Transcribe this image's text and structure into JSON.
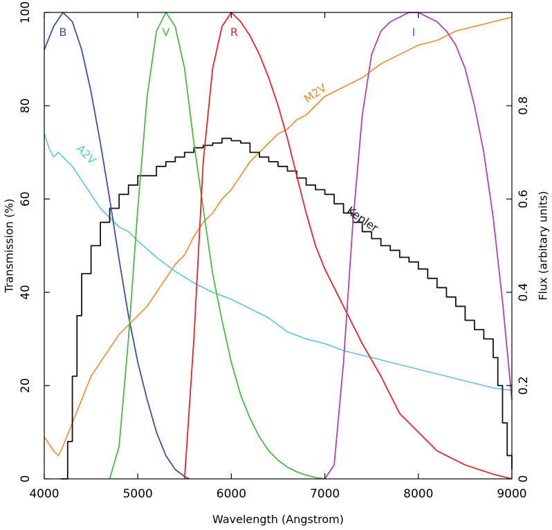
{
  "chart_data": {
    "type": "line",
    "xlabel": "Wavelength (Angstrom)",
    "ylabel_left": "Transmission (%)",
    "ylabel_right": "Flux (arbitary units)",
    "xlim": [
      4000,
      9000
    ],
    "ylim_left": [
      0,
      100
    ],
    "ylim_right": [
      0,
      1.0
    ],
    "grid": false,
    "x_ticks": [
      4000,
      5000,
      6000,
      7000,
      8000,
      9000
    ],
    "x_tick_labels": [
      "4000",
      "5000",
      "6000",
      "7000",
      "8000",
      "9000"
    ],
    "y_left_ticks": [
      0,
      20,
      40,
      60,
      80,
      100
    ],
    "y_left_tick_labels": [
      "0",
      "20",
      "40",
      "60",
      "80",
      "100"
    ],
    "y_right_ticks": [
      0,
      0.2,
      0.4,
      0.6,
      0.8
    ],
    "y_right_tick_labels": [
      "0",
      "0.2",
      "0.4",
      "0.6",
      "0.8"
    ],
    "series": [
      {
        "name": "B",
        "axis": "left",
        "color": "#3a4fa0",
        "x": [
          4000,
          4100,
          4200,
          4300,
          4400,
          4500,
          4600,
          4700,
          4800,
          4900,
          5000,
          5100,
          5200,
          5300,
          5400,
          5500,
          5550
        ],
        "y": [
          92,
          97,
          100,
          98,
          92,
          83,
          72,
          60,
          47,
          35,
          25,
          17,
          10,
          5,
          2,
          0.5,
          0
        ]
      },
      {
        "name": "V",
        "axis": "left",
        "color": "#4cb848",
        "x": [
          4700,
          4800,
          4900,
          5000,
          5100,
          5200,
          5300,
          5400,
          5500,
          5600,
          5700,
          5800,
          5900,
          6000,
          6100,
          6200,
          6300,
          6400,
          6500,
          6600,
          6700,
          6800,
          6900,
          7000
        ],
        "y": [
          0,
          7,
          30,
          58,
          82,
          96,
          100,
          97,
          88,
          72,
          58,
          44,
          34,
          25,
          18,
          13,
          9,
          6,
          4,
          2.5,
          1.5,
          0.8,
          0.3,
          0
        ]
      },
      {
        "name": "R",
        "axis": "left",
        "color": "#e0262b",
        "x": [
          5500,
          5600,
          5700,
          5800,
          5900,
          6000,
          6100,
          6200,
          6300,
          6400,
          6500,
          6600,
          6700,
          6800,
          6900,
          7000,
          7200,
          7400,
          7600,
          7800,
          8000,
          8200,
          8500,
          8800,
          9000
        ],
        "y": [
          0,
          30,
          68,
          88,
          97,
          100,
          98,
          95,
          91,
          86,
          80,
          73,
          65,
          57,
          50,
          45,
          37,
          29,
          22,
          14,
          10,
          6,
          3,
          1,
          0
        ]
      },
      {
        "name": "I",
        "axis": "left",
        "color": "#b040b0",
        "x": [
          7000,
          7100,
          7200,
          7300,
          7400,
          7500,
          7600,
          7700,
          7800,
          7900,
          8000,
          8100,
          8200,
          8300,
          8400,
          8500,
          8600,
          8700,
          8800,
          8900,
          9000
        ],
        "y": [
          0,
          3,
          25,
          55,
          78,
          91,
          96,
          98,
          99,
          100,
          100,
          99,
          98,
          96,
          93,
          88,
          80,
          70,
          56,
          38,
          17
        ]
      },
      {
        "name": "Kepler",
        "axis": "left",
        "color": "#111111",
        "x": [
          4180,
          4250,
          4300,
          4350,
          4400,
          4500,
          4600,
          4700,
          4800,
          4900,
          5000,
          5100,
          5200,
          5300,
          5400,
          5500,
          5600,
          5700,
          5800,
          5900,
          6000,
          6100,
          6200,
          6300,
          6400,
          6500,
          6600,
          6700,
          6800,
          6900,
          7000,
          7100,
          7200,
          7300,
          7400,
          7500,
          7600,
          7700,
          7800,
          7900,
          8000,
          8100,
          8200,
          8300,
          8400,
          8500,
          8600,
          8700,
          8800,
          8850,
          8900,
          8950,
          9000
        ],
        "y": [
          0,
          8,
          22,
          35,
          44,
          50,
          55,
          58,
          61,
          63,
          65,
          65,
          67,
          68,
          69,
          70,
          71,
          71.5,
          72,
          73,
          72.5,
          72,
          70,
          69,
          68,
          67,
          66,
          64.5,
          63,
          62,
          61,
          59,
          57,
          55,
          53,
          51.5,
          50,
          49,
          47.5,
          46.5,
          45,
          43,
          41,
          39,
          37,
          34,
          32,
          30,
          26,
          20,
          12,
          5,
          2
        ]
      },
      {
        "name": "A2V",
        "axis": "right",
        "color": "#5cc4d8",
        "x": [
          4000,
          4050,
          4100,
          4150,
          4200,
          4300,
          4400,
          4500,
          4600,
          4700,
          4800,
          4900,
          5000,
          5200,
          5400,
          5600,
          5800,
          6000,
          6200,
          6400,
          6600,
          6800,
          7000,
          7200,
          7400,
          7600,
          7800,
          8000,
          8200,
          8400,
          8600,
          8800,
          9000
        ],
        "y": [
          0.74,
          0.71,
          0.69,
          0.7,
          0.69,
          0.67,
          0.64,
          0.61,
          0.58,
          0.56,
          0.54,
          0.53,
          0.51,
          0.475,
          0.445,
          0.42,
          0.4,
          0.385,
          0.365,
          0.345,
          0.315,
          0.3,
          0.29,
          0.275,
          0.265,
          0.255,
          0.245,
          0.235,
          0.225,
          0.215,
          0.205,
          0.195,
          0.19
        ]
      },
      {
        "name": "M2V",
        "axis": "right",
        "color": "#f28a2e",
        "x": [
          4000,
          4100,
          4150,
          4200,
          4300,
          4400,
          4500,
          4600,
          4700,
          4800,
          4900,
          5000,
          5100,
          5200,
          5300,
          5400,
          5500,
          5600,
          5700,
          5800,
          5900,
          6000,
          6100,
          6200,
          6300,
          6400,
          6500,
          6600,
          6700,
          6800,
          6900,
          7000,
          7200,
          7400,
          7600,
          7800,
          8000,
          8200,
          8400,
          8600,
          8800,
          9000
        ],
        "y": [
          0.09,
          0.06,
          0.05,
          0.07,
          0.12,
          0.17,
          0.22,
          0.25,
          0.28,
          0.31,
          0.33,
          0.35,
          0.37,
          0.4,
          0.43,
          0.46,
          0.48,
          0.52,
          0.55,
          0.57,
          0.6,
          0.62,
          0.65,
          0.68,
          0.7,
          0.72,
          0.74,
          0.75,
          0.77,
          0.78,
          0.8,
          0.82,
          0.84,
          0.86,
          0.89,
          0.91,
          0.93,
          0.94,
          0.96,
          0.97,
          0.98,
          0.99
        ]
      }
    ],
    "annotations": [
      {
        "text": "B",
        "color": "#3a4fa0",
        "x": 4200,
        "y": 95,
        "axis": "left",
        "rotate": 0
      },
      {
        "text": "V",
        "color": "#4cb848",
        "x": 5300,
        "y": 95,
        "axis": "left",
        "rotate": 0
      },
      {
        "text": "R",
        "color": "#e0262b",
        "x": 6030,
        "y": 95,
        "axis": "left",
        "rotate": 0
      },
      {
        "text": "I",
        "color": "#b040b0",
        "x": 7950,
        "y": 95,
        "axis": "left",
        "rotate": 0
      },
      {
        "text": "A2V",
        "color": "#5cc4d8",
        "x": 4420,
        "y": 0.69,
        "axis": "right",
        "rotate": 45
      },
      {
        "text": "M2V",
        "color": "#f28a2e",
        "x": 6920,
        "y": 0.82,
        "axis": "right",
        "rotate": -35
      },
      {
        "text": "Kepler",
        "color": "#111111",
        "x": 7380,
        "y": 0.55,
        "axis": "right",
        "rotate": 35
      }
    ]
  }
}
